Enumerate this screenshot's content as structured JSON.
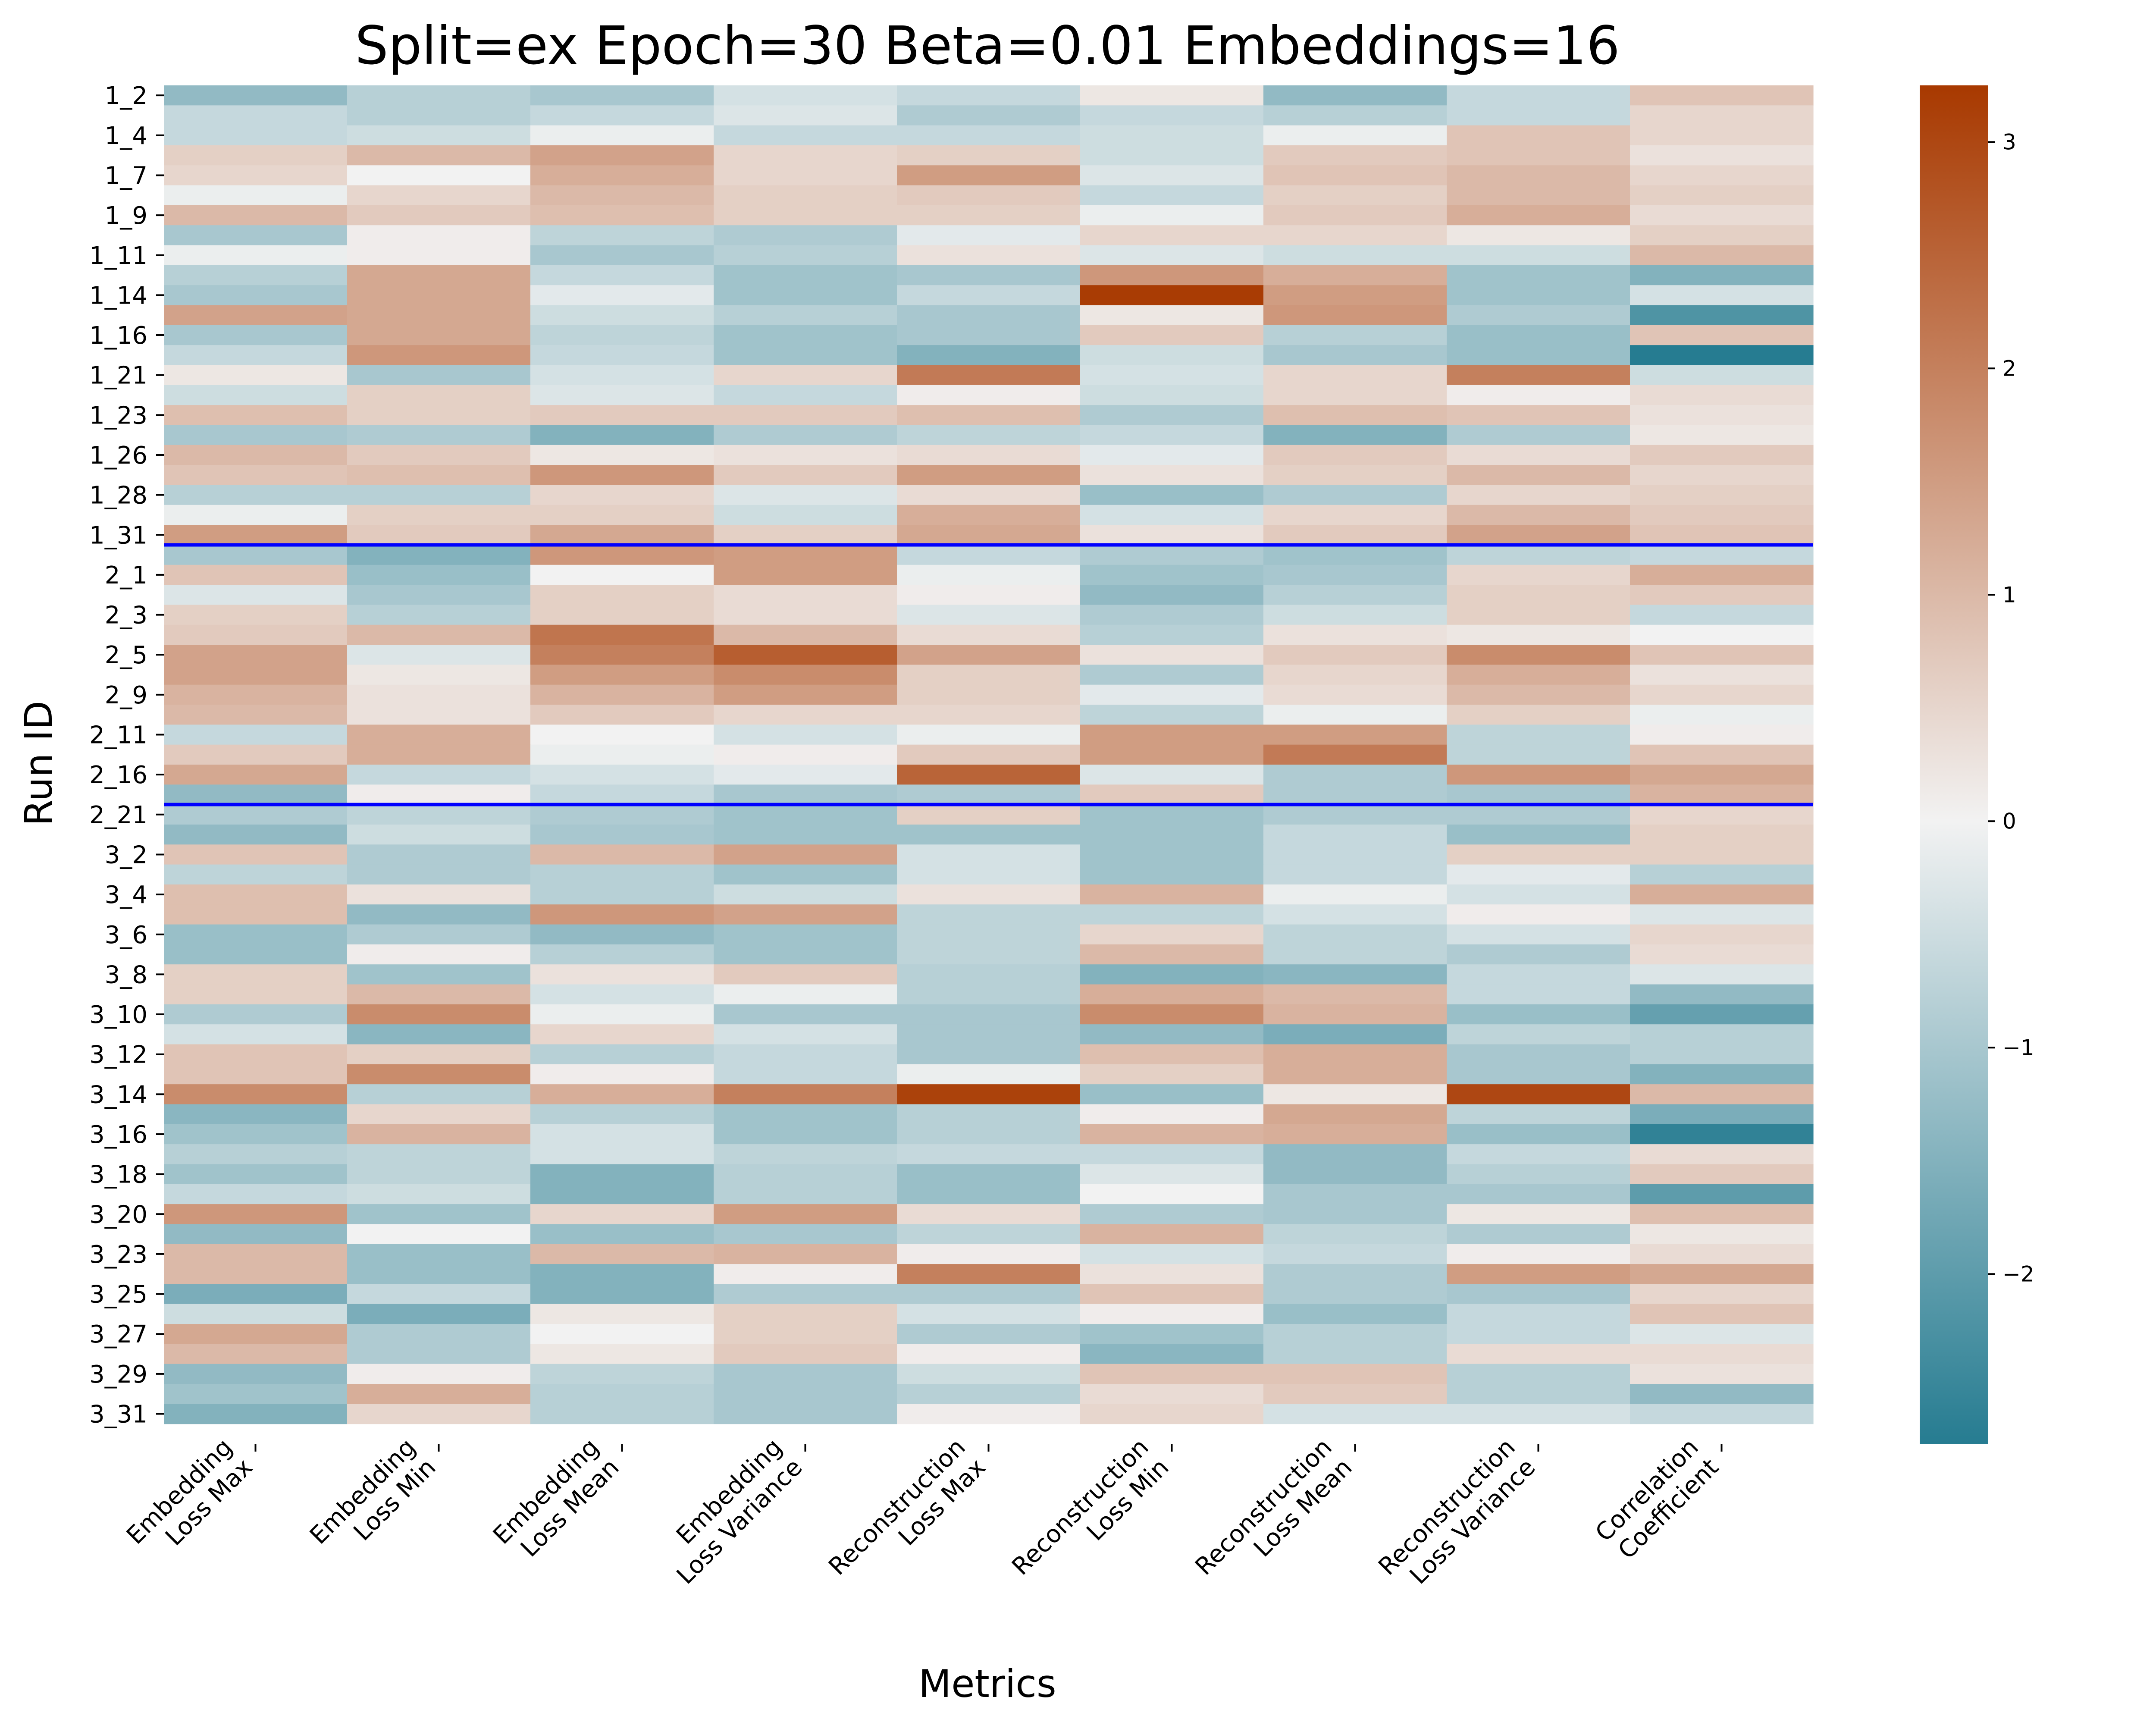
{
  "chart_data": {
    "type": "heatmap",
    "title": "Split=ex Epoch=30 Beta=0.01 Embeddings=16",
    "xlabel": "Metrics",
    "ylabel": "Run ID",
    "x_categories": [
      [
        "Embedding",
        "Loss Max"
      ],
      [
        "Embedding",
        "Loss Min"
      ],
      [
        "Embedding",
        "Loss Mean"
      ],
      [
        "Embedding",
        "Loss Variance"
      ],
      [
        "Reconstruction",
        "Loss Max"
      ],
      [
        "Reconstruction",
        "Loss Min"
      ],
      [
        "Reconstruction",
        "Loss Mean"
      ],
      [
        "Reconstruction",
        "Loss Variance"
      ],
      [
        "Correlation",
        "Coefficient"
      ]
    ],
    "y_tick_labels": [
      "1_2",
      "1_4",
      "1_7",
      "1_9",
      "1_11",
      "1_14",
      "1_16",
      "1_21",
      "1_23",
      "1_26",
      "1_28",
      "1_31",
      "2_1",
      "2_3",
      "2_5",
      "2_9",
      "2_11",
      "2_16",
      "2_21",
      "3_2",
      "3_4",
      "3_6",
      "3_8",
      "3_10",
      "3_12",
      "3_14",
      "3_16",
      "3_18",
      "3_20",
      "3_23",
      "3_25",
      "3_27",
      "3_29",
      "3_31"
    ],
    "y_ticks_every": 2,
    "n_rows": 68,
    "group_separators_after_row": [
      23,
      36
    ],
    "separator_color": "#0000ff",
    "colorbar": {
      "min": -2.75,
      "max": 3.25,
      "ticks": [
        -2,
        -1,
        0,
        1,
        2,
        3
      ],
      "tick_labels": [
        "−2",
        "−1",
        "0",
        "1",
        "2",
        "3"
      ],
      "color_low": "#267c91",
      "color_mid": "#f2f2f2",
      "color_high": "#a83900"
    },
    "values": [
      [
        -1.3,
        -0.8,
        -1.0,
        -0.4,
        -0.6,
        0.2,
        -1.3,
        -0.6,
        0.8
      ],
      [
        -0.6,
        -0.8,
        -0.6,
        -0.3,
        -0.9,
        -0.6,
        -0.8,
        -0.6,
        0.5
      ],
      [
        -0.6,
        -0.5,
        -0.1,
        -0.6,
        -0.6,
        -0.5,
        -0.1,
        0.8,
        0.5
      ],
      [
        0.6,
        1.0,
        1.4,
        0.5,
        0.6,
        -0.5,
        0.7,
        0.8,
        0.3
      ],
      [
        0.5,
        0.0,
        1.2,
        0.5,
        1.5,
        -0.3,
        0.8,
        1.0,
        0.5
      ],
      [
        -0.1,
        0.5,
        1.0,
        0.6,
        0.7,
        -0.6,
        0.6,
        1.0,
        0.6
      ],
      [
        1.0,
        0.7,
        0.9,
        0.6,
        0.6,
        -0.1,
        0.7,
        1.2,
        0.4
      ],
      [
        -1.0,
        0.1,
        -0.7,
        -0.9,
        -0.2,
        0.5,
        0.5,
        0.2,
        0.6
      ],
      [
        -0.1,
        0.1,
        -1.0,
        -0.8,
        0.3,
        -0.3,
        -0.5,
        -0.5,
        1.0
      ],
      [
        -0.8,
        1.3,
        -0.6,
        -1.1,
        -1.0,
        1.6,
        1.2,
        -1.1,
        -1.5
      ],
      [
        -1.0,
        1.3,
        -0.2,
        -1.1,
        -0.6,
        3.2,
        1.5,
        -1.1,
        -0.4
      ],
      [
        1.4,
        1.3,
        -0.5,
        -0.8,
        -1.0,
        0.2,
        1.6,
        -0.9,
        -2.2
      ],
      [
        -1.0,
        1.3,
        -0.7,
        -1.1,
        -1.0,
        0.7,
        -0.8,
        -1.2,
        0.8
      ],
      [
        -0.6,
        1.6,
        -0.6,
        -1.1,
        -1.5,
        -0.5,
        -1.0,
        -1.2,
        -2.8
      ],
      [
        0.2,
        -1.0,
        -0.4,
        0.5,
        2.1,
        -0.4,
        0.5,
        2.0,
        -0.5
      ],
      [
        -0.5,
        0.6,
        -0.3,
        -0.6,
        0.1,
        -0.5,
        0.5,
        0.1,
        0.4
      ],
      [
        0.9,
        0.6,
        0.7,
        0.7,
        0.9,
        -0.9,
        0.9,
        0.8,
        0.3
      ],
      [
        -1.0,
        -0.9,
        -1.5,
        -0.9,
        -0.7,
        -0.6,
        -1.5,
        -0.9,
        0.2
      ],
      [
        1.0,
        0.7,
        0.2,
        0.3,
        0.4,
        -0.2,
        0.7,
        0.4,
        0.7
      ],
      [
        0.8,
        0.9,
        1.6,
        0.7,
        1.5,
        0.3,
        0.6,
        1.0,
        0.5
      ],
      [
        -0.8,
        -0.8,
        0.5,
        -0.3,
        0.4,
        -1.2,
        -0.9,
        0.5,
        0.6
      ],
      [
        -0.1,
        0.6,
        0.6,
        -0.5,
        1.2,
        -0.4,
        0.5,
        1.0,
        0.7
      ],
      [
        1.5,
        0.7,
        1.3,
        0.6,
        1.3,
        0.3,
        0.7,
        1.4,
        0.8
      ],
      [
        -1.0,
        -1.5,
        1.6,
        1.5,
        -0.6,
        -0.9,
        -1.1,
        -0.7,
        -0.6
      ],
      [
        0.8,
        -1.2,
        0.0,
        1.5,
        -0.1,
        -1.1,
        -1.0,
        0.5,
        1.2
      ],
      [
        -0.3,
        -1.0,
        0.6,
        0.4,
        0.1,
        -1.3,
        -0.8,
        0.6,
        0.7
      ],
      [
        0.6,
        -0.8,
        0.6,
        0.4,
        -0.3,
        -0.9,
        -0.5,
        0.6,
        -0.6
      ],
      [
        0.7,
        1.0,
        2.2,
        1.0,
        0.4,
        -0.8,
        0.3,
        0.2,
        0.0
      ],
      [
        1.4,
        -0.3,
        2.0,
        2.6,
        1.4,
        0.3,
        0.7,
        1.8,
        0.8
      ],
      [
        1.4,
        0.2,
        1.5,
        1.8,
        0.6,
        -0.9,
        0.5,
        1.2,
        0.3
      ],
      [
        1.1,
        0.3,
        1.1,
        1.5,
        0.6,
        -0.2,
        0.4,
        1.0,
        0.5
      ],
      [
        1.0,
        0.3,
        0.7,
        0.5,
        0.5,
        -0.7,
        -0.1,
        0.6,
        -0.1
      ],
      [
        -0.6,
        1.2,
        0.0,
        -0.4,
        -0.1,
        1.5,
        1.5,
        -0.7,
        0.1
      ],
      [
        0.7,
        1.2,
        -0.1,
        0.1,
        0.7,
        1.5,
        2.1,
        -0.7,
        0.8
      ],
      [
        1.3,
        -0.6,
        -0.4,
        -0.2,
        2.5,
        -0.3,
        -0.9,
        1.6,
        1.3
      ],
      [
        -1.3,
        0.1,
        -0.6,
        -1.0,
        -0.9,
        0.7,
        -0.9,
        -1.0,
        1.1
      ],
      [
        -0.9,
        -0.7,
        -0.9,
        -1.1,
        0.6,
        -1.1,
        -0.9,
        -0.9,
        0.5
      ],
      [
        -1.3,
        -0.5,
        -1.0,
        -1.1,
        -1.1,
        -1.1,
        -0.6,
        -1.2,
        0.6
      ],
      [
        0.8,
        -0.9,
        1.0,
        1.4,
        -0.4,
        -1.1,
        -0.6,
        0.6,
        0.6
      ],
      [
        -0.7,
        -0.9,
        -0.8,
        -1.1,
        -0.4,
        -1.1,
        -0.6,
        -0.2,
        -0.8
      ],
      [
        0.9,
        0.3,
        -0.8,
        -0.5,
        0.3,
        1.1,
        -0.1,
        -0.4,
        1.2
      ],
      [
        0.9,
        -1.3,
        1.6,
        1.4,
        -0.7,
        -0.7,
        -0.4,
        0.1,
        -0.3
      ],
      [
        -1.2,
        -0.9,
        -1.3,
        -1.1,
        -0.7,
        0.5,
        -0.7,
        -0.4,
        0.5
      ],
      [
        -1.2,
        0.1,
        -0.8,
        -1.1,
        -0.7,
        1.0,
        -0.7,
        -0.9,
        0.4
      ],
      [
        0.6,
        -1.1,
        0.3,
        0.7,
        -0.8,
        -1.5,
        -1.4,
        -0.6,
        -0.3
      ],
      [
        0.6,
        1.0,
        -0.4,
        -0.1,
        -0.8,
        1.2,
        1.0,
        -0.6,
        -1.3
      ],
      [
        -0.9,
        1.8,
        -0.1,
        -1.0,
        -1.0,
        1.8,
        1.1,
        -1.2,
        -1.9
      ],
      [
        -0.4,
        -1.4,
        0.5,
        -0.4,
        -1.0,
        -1.3,
        -1.6,
        -0.7,
        -0.8
      ],
      [
        0.8,
        0.6,
        -0.8,
        -0.6,
        -1.0,
        0.9,
        1.2,
        -1.0,
        -0.8
      ],
      [
        0.8,
        1.8,
        0.1,
        -0.6,
        -0.1,
        0.6,
        1.2,
        -1.0,
        -1.5
      ],
      [
        1.8,
        -0.8,
        1.2,
        2.0,
        3.1,
        -1.2,
        0.2,
        3.0,
        1.0
      ],
      [
        -1.4,
        0.5,
        -0.8,
        -1.1,
        -0.8,
        0.1,
        1.3,
        -0.7,
        -1.6
      ],
      [
        -1.1,
        1.1,
        -0.4,
        -1.1,
        -0.8,
        1.1,
        1.2,
        -1.2,
        -2.6
      ],
      [
        -0.8,
        -0.7,
        -0.4,
        -0.7,
        -0.6,
        -0.6,
        -1.3,
        -0.6,
        0.4
      ],
      [
        -1.1,
        -0.7,
        -1.5,
        -0.8,
        -1.2,
        -0.3,
        -1.3,
        -0.8,
        0.7
      ],
      [
        -0.6,
        -0.5,
        -1.5,
        -0.8,
        -1.2,
        0.0,
        -1.0,
        -1.0,
        -2.0
      ],
      [
        1.6,
        -1.1,
        0.5,
        1.5,
        0.4,
        -0.9,
        -1.0,
        0.2,
        0.9
      ],
      [
        -1.3,
        0.0,
        -1.2,
        -1.0,
        -0.7,
        1.1,
        -0.7,
        -0.9,
        0.2
      ],
      [
        1.0,
        -1.2,
        1.0,
        1.1,
        0.1,
        -0.4,
        -0.6,
        0.1,
        0.4
      ],
      [
        1.0,
        -1.2,
        -1.5,
        0.1,
        2.0,
        0.3,
        -0.9,
        1.5,
        1.3
      ],
      [
        -1.6,
        -0.6,
        -1.5,
        -0.9,
        -0.9,
        0.8,
        -0.9,
        -1.0,
        0.5
      ],
      [
        -0.5,
        -1.6,
        0.2,
        0.6,
        -0.4,
        0.1,
        -1.2,
        -0.6,
        0.8
      ],
      [
        1.3,
        -0.9,
        0.0,
        0.6,
        -0.9,
        -1.1,
        -0.8,
        -0.6,
        -0.3
      ],
      [
        1.0,
        -0.9,
        0.2,
        0.7,
        0.1,
        -1.4,
        -0.8,
        0.4,
        0.4
      ],
      [
        -1.3,
        0.1,
        -0.7,
        -1.0,
        -0.5,
        0.8,
        0.8,
        -0.8,
        0.3
      ],
      [
        -1.1,
        1.2,
        -0.8,
        -1.0,
        -0.8,
        0.4,
        0.7,
        -0.8,
        -1.3
      ],
      [
        -1.5,
        0.5,
        -0.8,
        -1.0,
        0.1,
        0.5,
        -0.4,
        -0.4,
        -0.6
      ]
    ]
  }
}
